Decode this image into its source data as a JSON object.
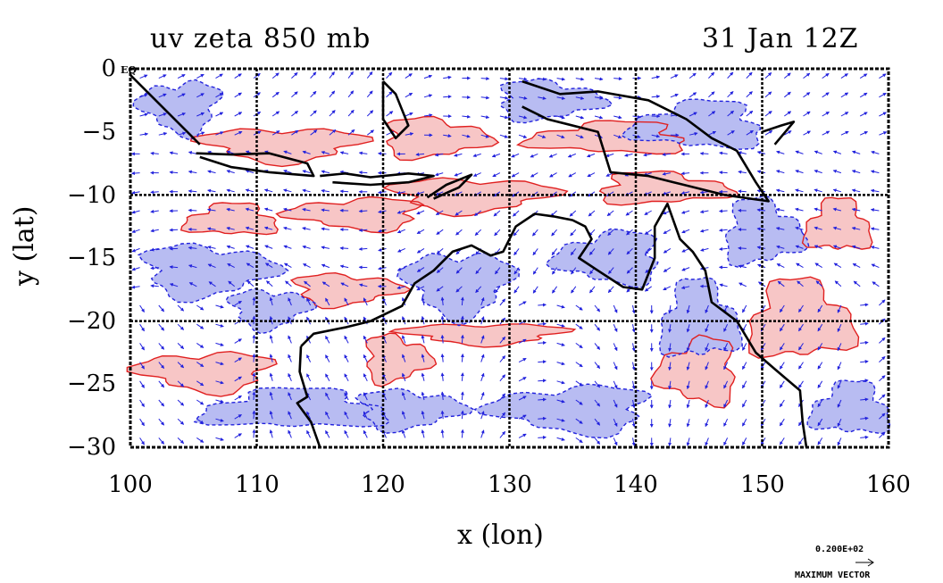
{
  "title_left": "uv zeta 850 mb",
  "title_right": "31 Jan 12Z",
  "xlabel": "x (lon)",
  "ylabel": "y (lat)",
  "equator_tag": "EQ",
  "x_ticks": [
    "100",
    "110",
    "120",
    "130",
    "140",
    "150",
    "160"
  ],
  "y_ticks": [
    "0",
    "−5",
    "−10",
    "−15",
    "−20",
    "−25",
    "−30"
  ],
  "scale_value": "0.200E+02",
  "scale_label": "MAXIMUM VECTOR",
  "colors": {
    "positive_fill": "#f7c6c6",
    "positive_line": "#e02020",
    "negative_fill": "#b8bcf2",
    "negative_line": "#2222dd",
    "vector": "#2222dd",
    "coast": "#000000",
    "grid": "#000000"
  },
  "map": {
    "projection": "lat-lon",
    "lon_range": [
      100,
      160
    ],
    "lat_range": [
      -30,
      0
    ],
    "grid_lon": [
      110,
      120,
      130,
      140,
      150
    ],
    "grid_lat": [
      -10,
      -20
    ],
    "fields": [
      "wind vectors",
      "relative vorticity contours"
    ]
  }
}
